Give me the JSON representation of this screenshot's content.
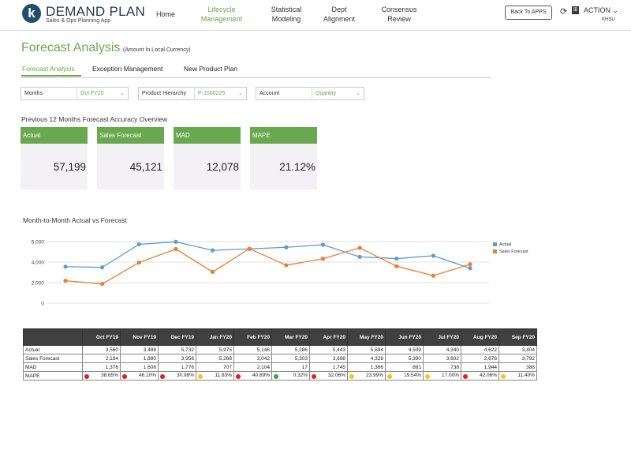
{
  "header": {
    "logo_letter": "k",
    "title": "DEMAND PLAN",
    "subtitle": "Sales & Ops Planning App",
    "nav": [
      "Home",
      "Lifecycle Management",
      "Statistical Modeling",
      "Dept Alignment",
      "Consensus Review"
    ],
    "nav_lines": [
      [
        "Home"
      ],
      [
        "Lifecycle",
        "Management"
      ],
      [
        "Statistical",
        "Modeling"
      ],
      [
        "Dept",
        "Alignment"
      ],
      [
        "Consensus",
        "Review"
      ]
    ],
    "active_nav": "Lifecycle Management",
    "back_button": "Back To APPS",
    "action_label": "ACTION",
    "user": "KHSU",
    "icons": [
      "refresh-icon",
      "office-icon",
      "chevron-down-icon"
    ]
  },
  "page": {
    "title": "Forecast Analysis",
    "subtitle": "(Amount In Local Currency)"
  },
  "tabs": [
    "Forecast Analysis",
    "Exception Management",
    "New Product Plan"
  ],
  "active_tab": "Forecast Analysis",
  "filters": {
    "months": {
      "label": "Months",
      "value": "Oct FY20"
    },
    "hierarchy": {
      "label": "Product Hierarchy",
      "value": "P-1000225"
    },
    "account": {
      "label": "Account",
      "value": "Quantity"
    }
  },
  "kpi_section": "Previous 12 Months Forecast Accuracy Overview",
  "kpis": [
    {
      "label": "Actual",
      "value": "57,199"
    },
    {
      "label": "Sales Forecast",
      "value": "45,121"
    },
    {
      "label": "MAD",
      "value": "12,078"
    },
    {
      "label": "MAPE",
      "value": "21.12%"
    }
  ],
  "colors": {
    "accent": "#6aa84f",
    "actual": "#5b9bd5",
    "forecast": "#ed7d31",
    "red": "#e02020",
    "yellow": "#f5c518",
    "green": "#2eaa4a",
    "header_dark": "#404040"
  },
  "chart_data": {
    "type": "line",
    "title": "Month-to-Month Actual vs Forecast",
    "categories": [
      "Oct FY19",
      "Nov FY19",
      "Dec FY19",
      "Jan FY20",
      "Feb FY20",
      "Mar FY20",
      "Apr FY20",
      "May FY20",
      "Jun FY20",
      "Jul FY20",
      "Aug FY20",
      "Sep FY20"
    ],
    "series": [
      {
        "name": "Actual",
        "values": [
          3560,
          3488,
          5732,
          5975,
          5146,
          5286,
          5443,
          5694,
          4509,
          4340,
          4622,
          3404
        ]
      },
      {
        "name": "Sales Forecast",
        "values": [
          2184,
          1880,
          3956,
          5268,
          3042,
          5303,
          3698,
          4328,
          5390,
          3602,
          2678,
          3792
        ]
      }
    ],
    "ylim": [
      0,
      6000
    ],
    "yticks": [
      "6,000",
      "4,000",
      "2,000",
      "0"
    ],
    "ytick_values": [
      6000,
      4000,
      2000,
      0
    ],
    "legend": "top-right",
    "grid": true
  },
  "table": {
    "headers": [
      "",
      "Oct FY19",
      "Nov FY19",
      "Dec FY19",
      "Jan FY20",
      "Feb FY20",
      "Mar FY20",
      "Apr FY20",
      "May FY20",
      "Jun FY20",
      "Jul FY20",
      "Aug FY20",
      "Sep FY20"
    ],
    "rows": [
      {
        "label": "Actual",
        "cells": [
          "3,560",
          "3,488",
          "5,732",
          "5,975",
          "5,146",
          "5,286",
          "5,443",
          "5,694",
          "4,509",
          "4,340",
          "4,622",
          "3,404"
        ]
      },
      {
        "label": "Sales Forecast",
        "cells": [
          "2,184",
          "1,880",
          "3,956",
          "5,268",
          "3,042",
          "5,303",
          "3,698",
          "4,328",
          "5,390",
          "3,602",
          "2,678",
          "3,792"
        ]
      },
      {
        "label": "MAD",
        "cells": [
          "1,376",
          "1,608",
          "1,776",
          "707",
          "2,104",
          "17",
          "1,745",
          "1,366",
          "881",
          "738",
          "1,944",
          "388"
        ]
      },
      {
        "label": "MAPE",
        "cells": [
          "38.65%",
          "46.10%",
          "30.98%",
          "11.83%",
          "40.89%",
          "0.32%",
          "32.06%",
          "23.99%",
          "19.54%",
          "17.00%",
          "42.06%",
          "11.40%"
        ],
        "status": [
          "red",
          "red",
          "red",
          "yellow",
          "red",
          "green",
          "red",
          "yellow",
          "yellow",
          "yellow",
          "red",
          "yellow"
        ]
      }
    ]
  }
}
